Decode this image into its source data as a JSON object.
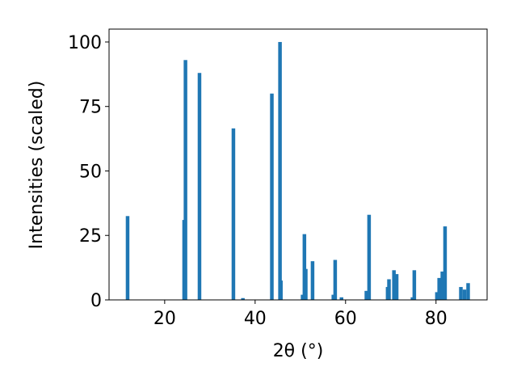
{
  "chart_data": {
    "type": "bar",
    "x_label": "2θ (°)",
    "y_label": "Intensities (scaled)",
    "x": [
      11.8,
      24.3,
      24.6,
      27.7,
      35.2,
      37.3,
      43.7,
      45.5,
      45.7,
      50.5,
      50.9,
      51.2,
      52.7,
      57.3,
      57.7,
      59.1,
      64.6,
      65.2,
      69.3,
      69.6,
      70.7,
      71.3,
      74.8,
      75.2,
      80.2,
      80.7,
      81.4,
      82.0,
      85.5,
      86.3,
      87.1
    ],
    "values": [
      32.5,
      31,
      93,
      88,
      66.5,
      0.7,
      80,
      100,
      7.5,
      2,
      25.5,
      12,
      15,
      2,
      15.5,
      1,
      3.5,
      33,
      5,
      8,
      11.5,
      10,
      1,
      11.5,
      3,
      8.5,
      11,
      28.5,
      5,
      4,
      6.5
    ],
    "color": "#1f77b4",
    "xlim": [
      7.7,
      91.3
    ],
    "ylim": [
      0,
      105
    ],
    "xticks": [
      20,
      40,
      60,
      80
    ],
    "yticks": [
      0,
      25,
      50,
      75,
      100
    ],
    "grid": false
  }
}
